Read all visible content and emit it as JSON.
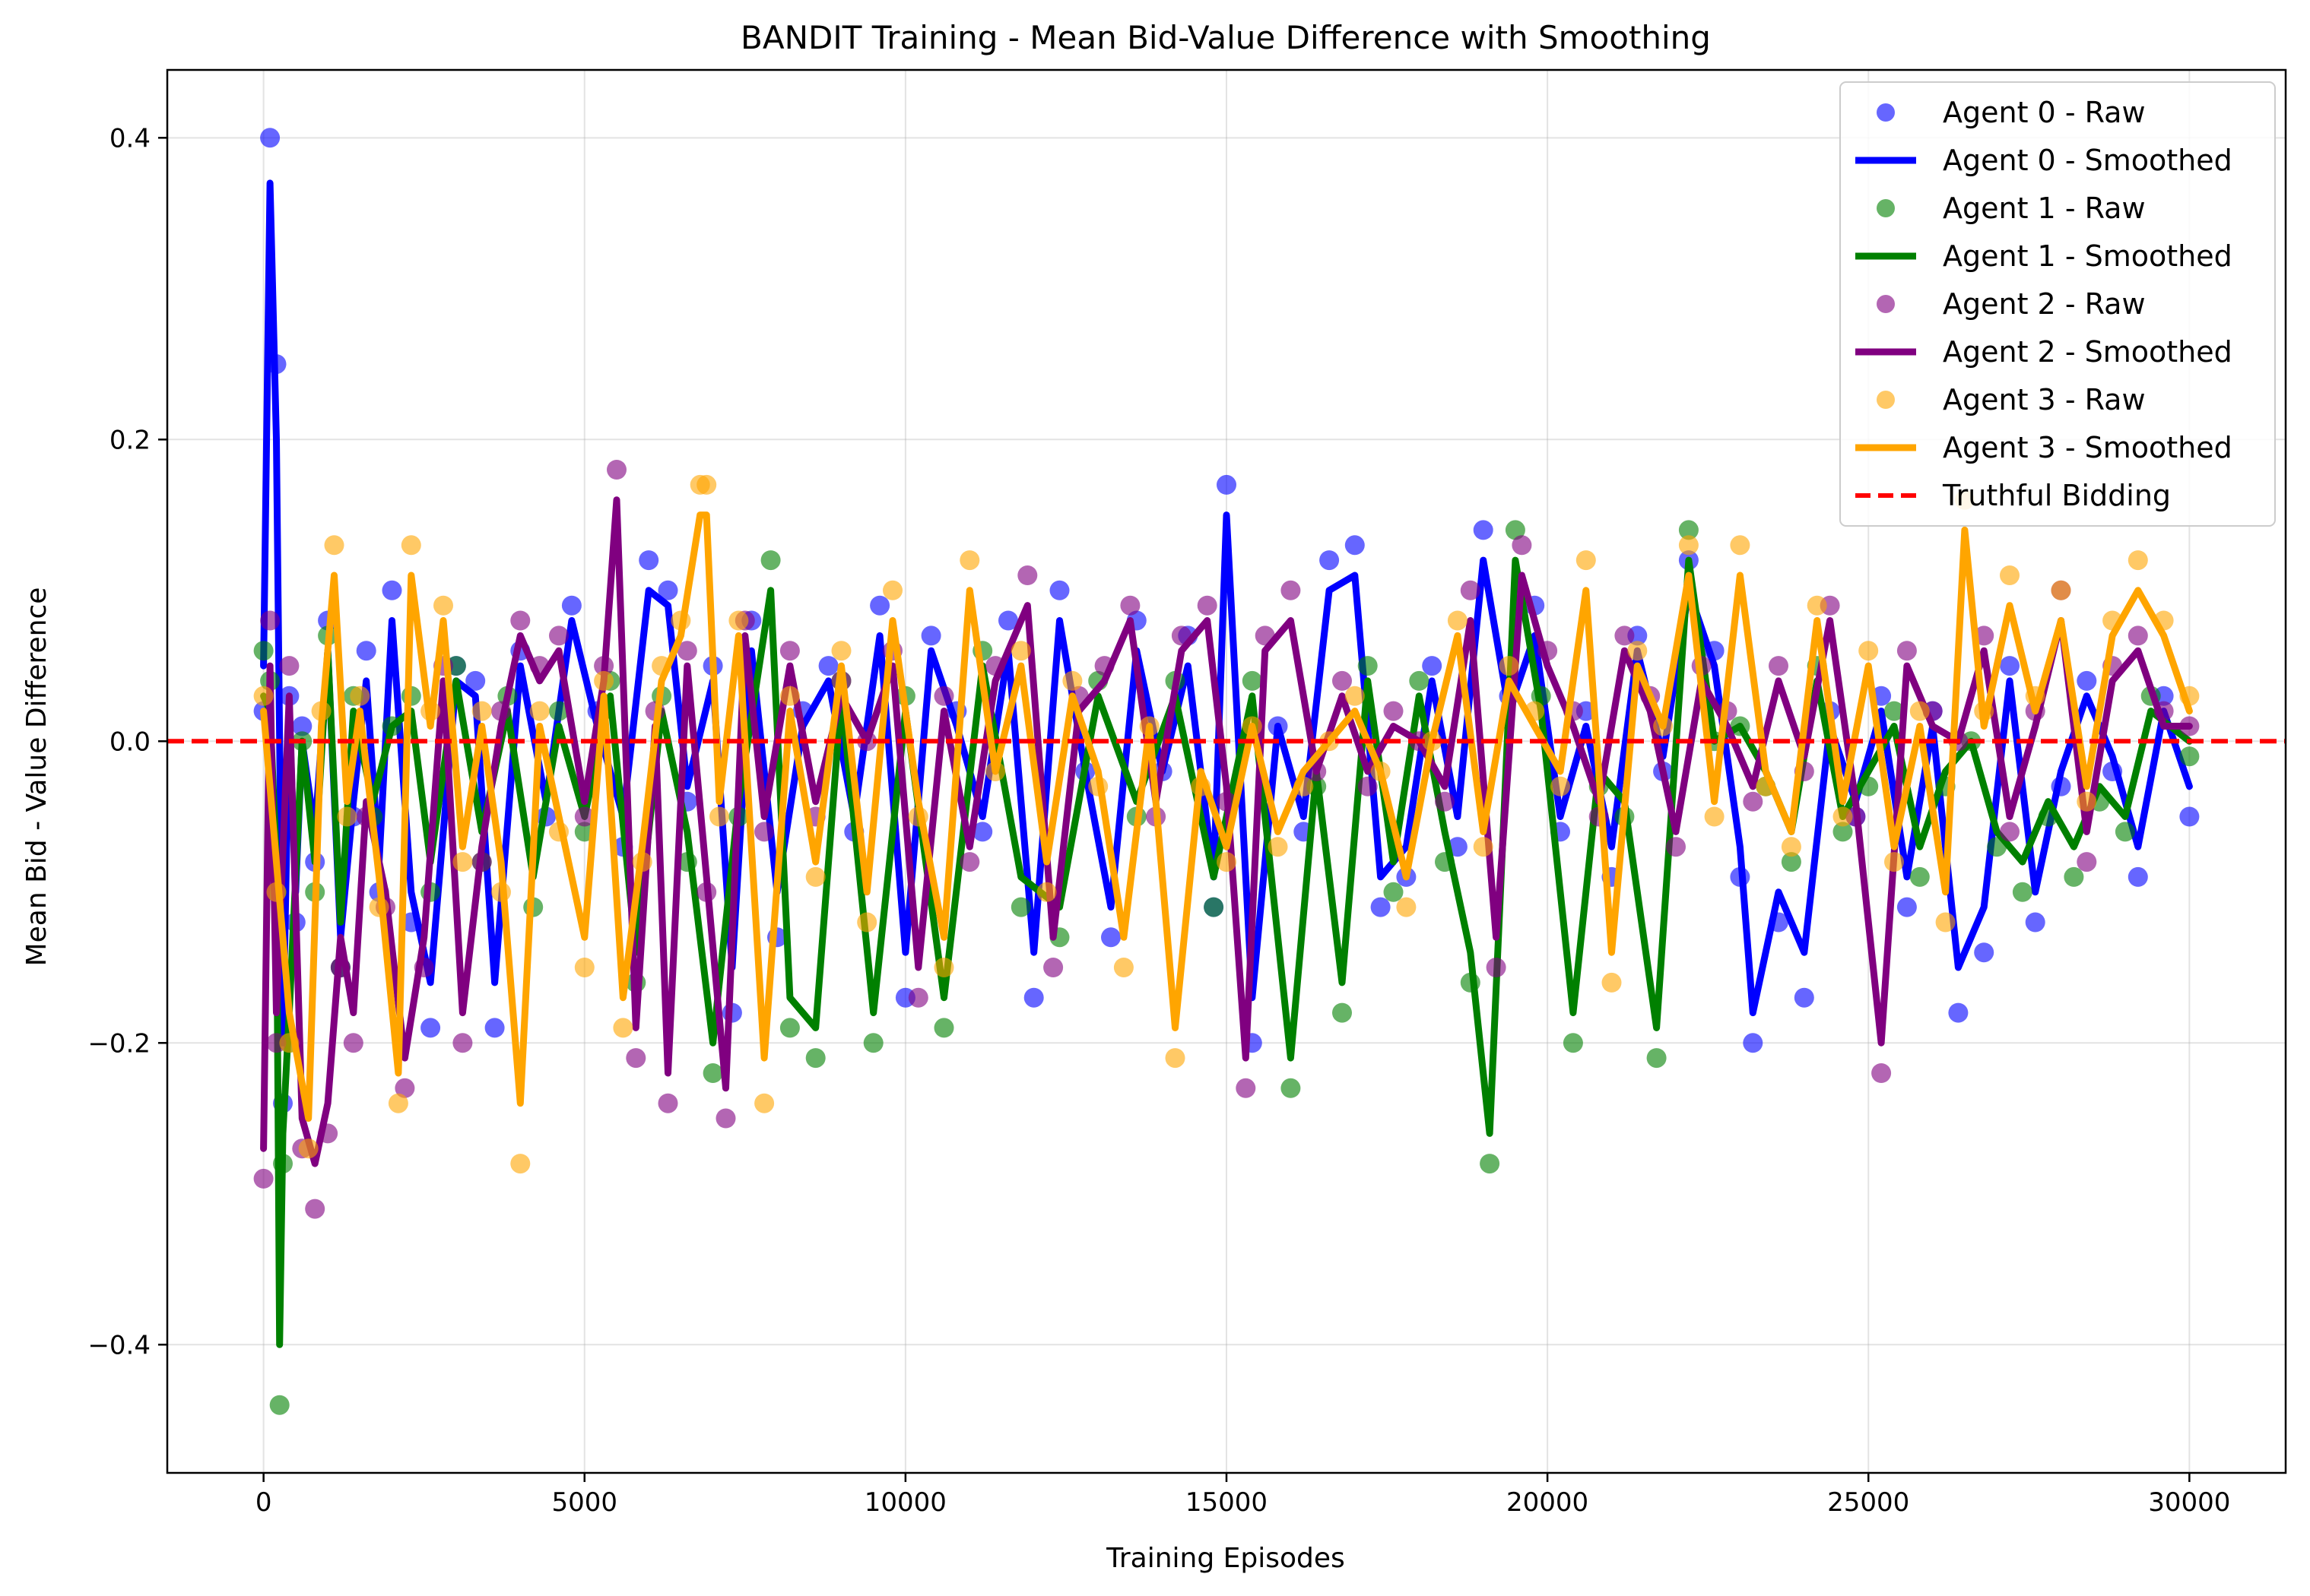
{
  "chart_data": {
    "type": "line",
    "title": "BANDIT Training - Mean Bid-Value Difference with Smoothing",
    "xlabel": "Training Episodes",
    "ylabel": "Mean Bid - Value Difference",
    "xlim": [
      -1500,
      31500
    ],
    "ylim": [
      -0.485,
      0.445
    ],
    "xticks": [
      0,
      5000,
      10000,
      15000,
      20000,
      25000,
      30000
    ],
    "xtick_labels": [
      "0",
      "5000",
      "10000",
      "15000",
      "20000",
      "25000",
      "30000"
    ],
    "yticks": [
      -0.4,
      -0.2,
      0.0,
      0.2,
      0.4
    ],
    "ytick_labels": [
      "−0.4",
      "−0.2",
      "0.0",
      "0.2",
      "0.4"
    ],
    "grid": true,
    "legend_position": "top-right",
    "reference_line": {
      "name": "Truthful Bidding",
      "y": 0.0,
      "color": "#ff0000",
      "style": "dashed"
    },
    "series": [
      {
        "name": "Agent 0",
        "raw_label": "Agent 0 - Raw",
        "smoothed_label": "Agent 0 - Smoothed",
        "color": "#0000ff",
        "x": [
          0,
          100,
          200,
          300,
          400,
          500,
          600,
          800,
          1000,
          1200,
          1400,
          1600,
          1800,
          2000,
          2300,
          2600,
          3000,
          3300,
          3600,
          4000,
          4400,
          4800,
          5200,
          5600,
          6000,
          6300,
          6600,
          7000,
          7300,
          7600,
          8000,
          8400,
          8800,
          9200,
          9600,
          10000,
          10400,
          10800,
          11200,
          11600,
          12000,
          12400,
          12800,
          13200,
          13600,
          14000,
          14400,
          14800,
          15000,
          15400,
          15800,
          16200,
          16600,
          17000,
          17400,
          17800,
          18200,
          18600,
          19000,
          19400,
          19800,
          20200,
          20600,
          21000,
          21400,
          21800,
          22200,
          22600,
          23000,
          23200,
          23600,
          24000,
          24400,
          24800,
          25200,
          25600,
          26000,
          26400,
          26800,
          27200,
          27600,
          28000,
          28400,
          28800,
          29200,
          29600,
          30000
        ],
        "raw": [
          0.02,
          0.4,
          0.25,
          -0.24,
          0.03,
          -0.12,
          0.01,
          -0.08,
          0.08,
          -0.15,
          -0.05,
          0.06,
          -0.1,
          0.1,
          -0.12,
          -0.19,
          0.05,
          0.04,
          -0.19,
          0.06,
          -0.05,
          0.09,
          0.02,
          -0.07,
          0.12,
          0.1,
          -0.04,
          0.05,
          -0.18,
          0.08,
          -0.13,
          0.02,
          0.05,
          -0.06,
          0.09,
          -0.17,
          0.07,
          0.02,
          -0.06,
          0.08,
          -0.17,
          0.1,
          -0.02,
          -0.13,
          0.08,
          -0.02,
          0.07,
          -0.11,
          0.17,
          -0.2,
          0.01,
          -0.06,
          0.12,
          0.13,
          -0.11,
          -0.09,
          0.05,
          -0.07,
          0.14,
          0.03,
          0.09,
          -0.06,
          0.02,
          -0.09,
          0.07,
          -0.02,
          0.12,
          0.06,
          -0.09,
          -0.2,
          -0.12,
          -0.17,
          0.02,
          -0.05,
          0.03,
          -0.11,
          0.02,
          -0.18,
          -0.14,
          0.05,
          -0.12,
          -0.03,
          0.04,
          -0.02,
          -0.09,
          0.03,
          -0.05
        ],
        "smoothed": [
          0.05,
          0.37,
          0.2,
          -0.2,
          0.02,
          -0.1,
          0.0,
          -0.06,
          0.06,
          -0.13,
          -0.04,
          0.04,
          -0.08,
          0.08,
          -0.1,
          -0.16,
          0.04,
          0.03,
          -0.16,
          0.05,
          -0.04,
          0.08,
          0.01,
          -0.05,
          0.1,
          0.09,
          -0.03,
          0.04,
          -0.15,
          0.06,
          -0.1,
          0.01,
          0.04,
          -0.05,
          0.07,
          -0.14,
          0.06,
          0.01,
          -0.05,
          0.06,
          -0.14,
          0.08,
          -0.02,
          -0.11,
          0.06,
          -0.02,
          0.05,
          -0.09,
          0.15,
          -0.17,
          0.01,
          -0.05,
          0.1,
          0.11,
          -0.09,
          -0.07,
          0.04,
          -0.05,
          0.12,
          0.02,
          0.07,
          -0.05,
          0.01,
          -0.07,
          0.06,
          -0.01,
          0.1,
          0.05,
          -0.07,
          -0.18,
          -0.1,
          -0.14,
          0.01,
          -0.04,
          0.02,
          -0.09,
          0.01,
          -0.15,
          -0.11,
          0.04,
          -0.1,
          -0.02,
          0.03,
          -0.01,
          -0.07,
          0.02,
          -0.03
        ]
      },
      {
        "name": "Agent 1",
        "raw_label": "Agent 1 - Raw",
        "smoothed_label": "Agent 1 - Smoothed",
        "color": "#008000",
        "x": [
          0,
          100,
          200,
          250,
          300,
          400,
          600,
          800,
          1000,
          1200,
          1400,
          1700,
          2000,
          2300,
          2600,
          3000,
          3400,
          3800,
          4200,
          4600,
          5000,
          5400,
          5800,
          6200,
          6600,
          7000,
          7400,
          7900,
          8200,
          8600,
          9000,
          9500,
          10000,
          10600,
          11200,
          11800,
          12400,
          13000,
          13600,
          14200,
          14800,
          15400,
          16000,
          16400,
          16800,
          17200,
          17600,
          18000,
          18400,
          18800,
          19100,
          19500,
          19900,
          20400,
          20800,
          21200,
          21700,
          22200,
          22600,
          23000,
          23400,
          23800,
          24200,
          24600,
          25000,
          25400,
          25800,
          26200,
          26600,
          27000,
          27400,
          27800,
          28200,
          28600,
          29000,
          29400,
          30000
        ],
        "raw": [
          0.06,
          0.04,
          -0.1,
          -0.44,
          -0.28,
          -0.2,
          0.0,
          -0.1,
          0.07,
          -0.15,
          0.03,
          -0.05,
          0.01,
          0.03,
          -0.1,
          0.05,
          -0.08,
          0.03,
          -0.11,
          0.02,
          -0.06,
          0.04,
          -0.16,
          0.03,
          -0.08,
          -0.22,
          -0.05,
          0.12,
          -0.19,
          -0.21,
          0.04,
          -0.2,
          0.03,
          -0.19,
          0.06,
          -0.11,
          -0.13,
          0.04,
          -0.05,
          0.04,
          -0.11,
          0.04,
          -0.23,
          -0.03,
          -0.18,
          0.05,
          -0.1,
          0.04,
          -0.08,
          -0.16,
          -0.28,
          0.14,
          0.03,
          -0.2,
          -0.03,
          -0.05,
          -0.21,
          0.14,
          0.0,
          0.01,
          -0.03,
          -0.08,
          0.05,
          -0.06,
          -0.03,
          0.02,
          -0.09,
          -0.03,
          0.0,
          -0.07,
          -0.1,
          -0.05,
          -0.09,
          -0.04,
          -0.06,
          0.03,
          -0.01
        ],
        "smoothed": [
          0.03,
          0.02,
          -0.08,
          -0.4,
          -0.26,
          -0.18,
          0.0,
          -0.08,
          0.06,
          -0.12,
          0.02,
          -0.04,
          0.01,
          0.02,
          -0.08,
          0.04,
          -0.06,
          0.02,
          -0.09,
          0.01,
          -0.05,
          0.03,
          -0.14,
          0.02,
          -0.06,
          -0.2,
          -0.04,
          0.1,
          -0.17,
          -0.19,
          0.03,
          -0.18,
          0.02,
          -0.17,
          0.05,
          -0.09,
          -0.11,
          0.03,
          -0.04,
          0.03,
          -0.09,
          0.03,
          -0.21,
          -0.02,
          -0.16,
          0.04,
          -0.08,
          0.03,
          -0.06,
          -0.14,
          -0.26,
          0.12,
          0.02,
          -0.18,
          -0.02,
          -0.04,
          -0.19,
          0.12,
          0.0,
          0.01,
          -0.02,
          -0.06,
          0.04,
          -0.05,
          -0.02,
          0.01,
          -0.07,
          -0.02,
          0.0,
          -0.06,
          -0.08,
          -0.04,
          -0.07,
          -0.03,
          -0.05,
          0.02,
          0.0
        ]
      },
      {
        "name": "Agent 2",
        "raw_label": "Agent 2 - Raw",
        "smoothed_label": "Agent 2 - Smoothed",
        "color": "#800080",
        "x": [
          0,
          100,
          200,
          400,
          600,
          800,
          1000,
          1200,
          1400,
          1600,
          1900,
          2200,
          2500,
          2800,
          3100,
          3400,
          3700,
          4000,
          4300,
          4600,
          5000,
          5300,
          5500,
          5800,
          6100,
          6300,
          6600,
          6900,
          7200,
          7500,
          7800,
          8200,
          8600,
          9000,
          9400,
          9800,
          10200,
          10600,
          11000,
          11400,
          11900,
          12300,
          12700,
          13100,
          13500,
          13900,
          14300,
          14700,
          15000,
          15300,
          15600,
          16000,
          16400,
          16800,
          17200,
          17600,
          18000,
          18400,
          18800,
          19200,
          19600,
          20000,
          20400,
          20800,
          21200,
          21600,
          22000,
          22400,
          22800,
          23200,
          23600,
          24000,
          24400,
          24800,
          25200,
          25600,
          26000,
          26400,
          26800,
          27200,
          27600,
          28000,
          28400,
          28800,
          29200,
          29600,
          30000
        ],
        "raw": [
          -0.29,
          0.08,
          -0.2,
          0.05,
          -0.27,
          -0.31,
          -0.26,
          -0.15,
          -0.2,
          -0.05,
          -0.11,
          -0.23,
          -0.15,
          0.05,
          -0.2,
          -0.08,
          0.02,
          0.08,
          0.05,
          0.07,
          -0.05,
          0.05,
          0.18,
          -0.21,
          0.02,
          -0.24,
          0.06,
          -0.1,
          -0.25,
          0.08,
          -0.06,
          0.06,
          -0.05,
          0.04,
          0.0,
          0.06,
          -0.17,
          0.03,
          -0.08,
          0.05,
          0.11,
          -0.15,
          0.03,
          0.05,
          0.09,
          -0.05,
          0.07,
          0.09,
          -0.04,
          -0.23,
          0.07,
          0.1,
          -0.02,
          0.04,
          -0.03,
          0.02,
          0.0,
          -0.04,
          0.1,
          -0.15,
          0.13,
          0.06,
          0.02,
          -0.05,
          0.07,
          0.03,
          -0.07,
          0.05,
          0.02,
          -0.04,
          0.05,
          -0.02,
          0.09,
          -0.05,
          -0.22,
          0.06,
          0.02,
          0.0,
          0.07,
          -0.06,
          0.02,
          0.1,
          -0.08,
          0.05,
          0.07,
          0.02,
          0.01
        ],
        "smoothed": [
          -0.27,
          0.05,
          -0.18,
          0.03,
          -0.25,
          -0.28,
          -0.24,
          -0.13,
          -0.18,
          -0.04,
          -0.1,
          -0.21,
          -0.13,
          0.04,
          -0.18,
          -0.07,
          0.01,
          0.07,
          0.04,
          0.06,
          -0.04,
          0.04,
          0.16,
          -0.19,
          0.01,
          -0.22,
          0.05,
          -0.09,
          -0.23,
          0.07,
          -0.05,
          0.05,
          -0.04,
          0.03,
          0.0,
          0.05,
          -0.15,
          0.02,
          -0.07,
          0.04,
          0.09,
          -0.13,
          0.02,
          0.04,
          0.08,
          -0.04,
          0.06,
          0.08,
          -0.03,
          -0.21,
          0.06,
          0.08,
          -0.02,
          0.03,
          -0.02,
          0.01,
          0.0,
          -0.03,
          0.08,
          -0.13,
          0.11,
          0.05,
          0.01,
          -0.04,
          0.06,
          0.02,
          -0.06,
          0.04,
          0.01,
          -0.03,
          0.04,
          -0.01,
          0.08,
          -0.04,
          -0.2,
          0.05,
          0.01,
          0.0,
          0.06,
          -0.05,
          0.01,
          0.08,
          -0.06,
          0.04,
          0.06,
          0.01,
          0.01
        ]
      },
      {
        "name": "Agent 3",
        "raw_label": "Agent 3 - Raw",
        "smoothed_label": "Agent 3 - Smoothed",
        "color": "#ffa500",
        "x": [
          0,
          200,
          400,
          700,
          900,
          1100,
          1300,
          1500,
          1800,
          2100,
          2300,
          2600,
          2800,
          3100,
          3400,
          3700,
          4000,
          4300,
          4600,
          5000,
          5300,
          5600,
          5900,
          6200,
          6500,
          6800,
          6900,
          7100,
          7400,
          7800,
          8200,
          8600,
          9000,
          9400,
          9800,
          10200,
          10600,
          11000,
          11400,
          11800,
          12200,
          12600,
          13000,
          13400,
          13800,
          14200,
          14600,
          15000,
          15400,
          15800,
          16200,
          16600,
          17000,
          17400,
          17800,
          18200,
          18600,
          19000,
          19400,
          19800,
          20200,
          20600,
          21000,
          21400,
          21800,
          22200,
          22600,
          23000,
          23400,
          23800,
          24200,
          24600,
          25000,
          25400,
          25800,
          26200,
          26500,
          26800,
          27200,
          27600,
          28000,
          28400,
          28800,
          29200,
          29600,
          30000
        ],
        "raw": [
          0.03,
          -0.1,
          -0.2,
          -0.27,
          0.02,
          0.13,
          -0.05,
          0.03,
          -0.11,
          -0.24,
          0.13,
          0.02,
          0.09,
          -0.08,
          0.02,
          -0.1,
          -0.28,
          0.02,
          -0.06,
          -0.15,
          0.04,
          -0.19,
          -0.08,
          0.05,
          0.08,
          0.17,
          0.17,
          -0.05,
          0.08,
          -0.24,
          0.03,
          -0.09,
          0.06,
          -0.12,
          0.1,
          -0.05,
          -0.15,
          0.12,
          -0.02,
          0.06,
          -0.1,
          0.04,
          -0.03,
          -0.15,
          0.01,
          -0.21,
          -0.03,
          -0.08,
          0.01,
          -0.07,
          -0.03,
          0.0,
          0.03,
          -0.02,
          -0.11,
          0.0,
          0.08,
          -0.07,
          0.05,
          0.02,
          -0.03,
          0.12,
          -0.16,
          0.06,
          0.01,
          0.13,
          -0.05,
          0.13,
          -0.03,
          -0.07,
          0.09,
          -0.05,
          0.06,
          -0.08,
          0.02,
          -0.12,
          0.16,
          0.02,
          0.11,
          0.03,
          0.1,
          -0.04,
          0.08,
          0.12,
          0.08,
          0.03
        ],
        "smoothed": [
          0.02,
          -0.08,
          -0.18,
          -0.25,
          0.01,
          0.11,
          -0.04,
          0.02,
          -0.09,
          -0.22,
          0.11,
          0.01,
          0.08,
          -0.07,
          0.01,
          -0.08,
          -0.24,
          0.01,
          -0.05,
          -0.13,
          0.03,
          -0.17,
          -0.07,
          0.04,
          0.07,
          0.15,
          0.15,
          -0.04,
          0.07,
          -0.21,
          0.02,
          -0.08,
          0.05,
          -0.1,
          0.08,
          -0.04,
          -0.13,
          0.1,
          -0.02,
          0.05,
          -0.08,
          0.03,
          -0.02,
          -0.13,
          0.01,
          -0.19,
          -0.02,
          -0.07,
          0.01,
          -0.06,
          -0.02,
          0.0,
          0.02,
          -0.02,
          -0.09,
          0.0,
          0.07,
          -0.06,
          0.04,
          0.01,
          -0.02,
          0.1,
          -0.14,
          0.05,
          0.01,
          0.11,
          -0.04,
          0.11,
          -0.02,
          -0.06,
          0.08,
          -0.04,
          0.05,
          -0.07,
          0.01,
          -0.1,
          0.14,
          0.01,
          0.09,
          0.02,
          0.08,
          -0.03,
          0.07,
          0.1,
          0.07,
          0.02
        ]
      }
    ]
  }
}
